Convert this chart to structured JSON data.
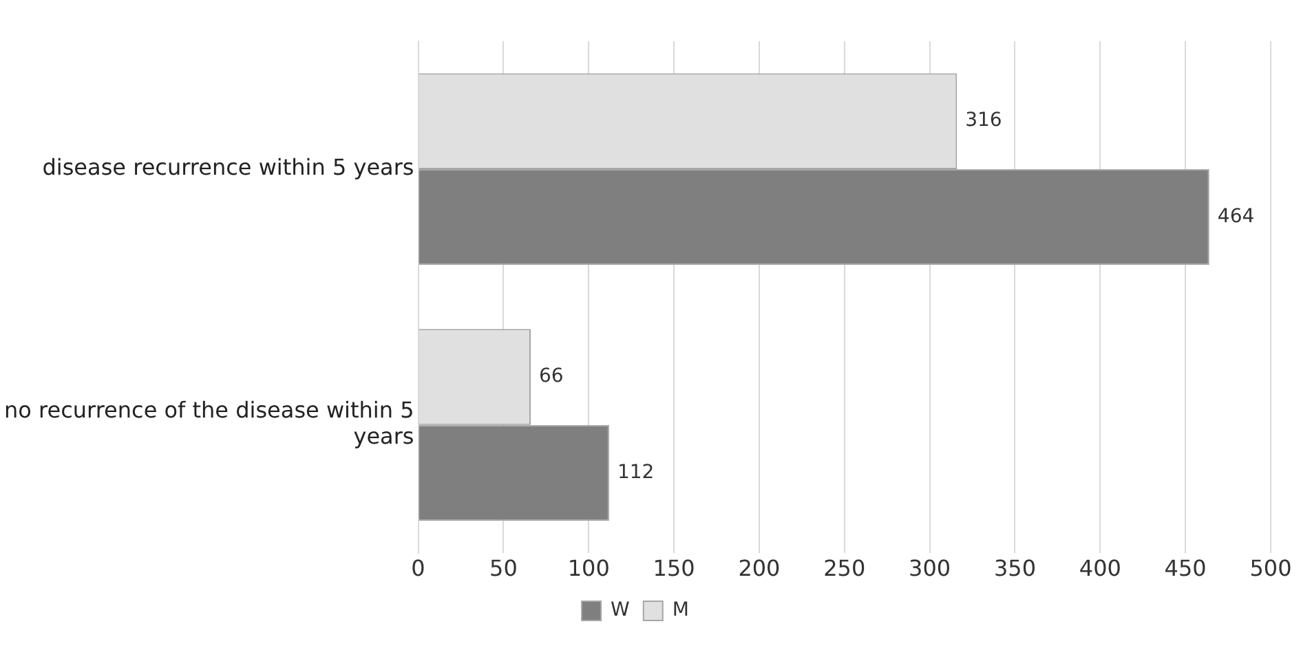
{
  "chart_data": {
    "type": "bar",
    "orientation": "horizontal",
    "categories": [
      "disease recurrence within 5 years",
      "no recurrence of the disease within 5 years"
    ],
    "series": [
      {
        "name": "M",
        "color": "#e0e0e0",
        "values": [
          316,
          66
        ]
      },
      {
        "name": "W",
        "color": "#7f7f7f",
        "values": [
          464,
          112
        ]
      }
    ],
    "xlim": [
      0,
      500
    ],
    "xticks": [
      0,
      50,
      100,
      150,
      200,
      250,
      300,
      350,
      400,
      450,
      500
    ],
    "grid": "x",
    "legend": "bottom",
    "data_labels": true
  }
}
